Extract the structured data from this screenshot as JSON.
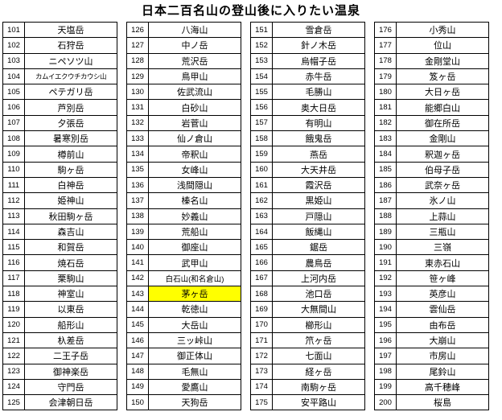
{
  "title": "日本二百名山の登山後に入りたい温泉",
  "highlight_color": "#ffff00",
  "columns": [
    {
      "rows": [
        {
          "num": "101",
          "name": "天塩岳"
        },
        {
          "num": "102",
          "name": "石狩岳"
        },
        {
          "num": "103",
          "name": "ニペソツ山"
        },
        {
          "num": "104",
          "name": "カムイエクウチカウシ山"
        },
        {
          "num": "105",
          "name": "ペテガリ岳"
        },
        {
          "num": "106",
          "name": "芦別岳"
        },
        {
          "num": "107",
          "name": "夕張岳"
        },
        {
          "num": "108",
          "name": "暑寒別岳"
        },
        {
          "num": "109",
          "name": "樽前山"
        },
        {
          "num": "110",
          "name": "駒ヶ岳"
        },
        {
          "num": "111",
          "name": "白神岳"
        },
        {
          "num": "112",
          "name": "姫神山"
        },
        {
          "num": "113",
          "name": "秋田駒ヶ岳"
        },
        {
          "num": "114",
          "name": "森吉山"
        },
        {
          "num": "115",
          "name": "和賀岳"
        },
        {
          "num": "116",
          "name": "焼石岳"
        },
        {
          "num": "117",
          "name": "栗駒山"
        },
        {
          "num": "118",
          "name": "神室山"
        },
        {
          "num": "119",
          "name": "以東岳"
        },
        {
          "num": "120",
          "name": "船形山"
        },
        {
          "num": "121",
          "name": "杁差岳"
        },
        {
          "num": "122",
          "name": "二王子岳"
        },
        {
          "num": "123",
          "name": "御神楽岳"
        },
        {
          "num": "124",
          "name": "守門岳"
        },
        {
          "num": "125",
          "name": "会津朝日岳"
        }
      ]
    },
    {
      "rows": [
        {
          "num": "126",
          "name": "八海山"
        },
        {
          "num": "127",
          "name": "中ノ岳"
        },
        {
          "num": "128",
          "name": "荒沢岳"
        },
        {
          "num": "129",
          "name": "鳥甲山"
        },
        {
          "num": "130",
          "name": "佐武流山"
        },
        {
          "num": "131",
          "name": "白砂山"
        },
        {
          "num": "132",
          "name": "岩菅山"
        },
        {
          "num": "133",
          "name": "仙ノ倉山"
        },
        {
          "num": "134",
          "name": "帝釈山"
        },
        {
          "num": "135",
          "name": "女峰山"
        },
        {
          "num": "136",
          "name": "浅間隠山"
        },
        {
          "num": "137",
          "name": "榛名山"
        },
        {
          "num": "138",
          "name": "妙義山"
        },
        {
          "num": "139",
          "name": "荒船山"
        },
        {
          "num": "140",
          "name": "御座山"
        },
        {
          "num": "141",
          "name": "武甲山"
        },
        {
          "num": "142",
          "name": "白石山(和名倉山)"
        },
        {
          "num": "143",
          "name": "茅ヶ岳",
          "highlight": true
        },
        {
          "num": "144",
          "name": "乾徳山"
        },
        {
          "num": "145",
          "name": "大岳山"
        },
        {
          "num": "146",
          "name": "三ッ峠山"
        },
        {
          "num": "147",
          "name": "御正体山"
        },
        {
          "num": "148",
          "name": "毛無山"
        },
        {
          "num": "149",
          "name": "愛鷹山"
        },
        {
          "num": "150",
          "name": "天狗岳"
        }
      ]
    },
    {
      "rows": [
        {
          "num": "151",
          "name": "雪倉岳"
        },
        {
          "num": "152",
          "name": "針ノ木岳"
        },
        {
          "num": "153",
          "name": "烏帽子岳"
        },
        {
          "num": "154",
          "name": "赤牛岳"
        },
        {
          "num": "155",
          "name": "毛勝山"
        },
        {
          "num": "156",
          "name": "奥大日岳"
        },
        {
          "num": "157",
          "name": "有明山"
        },
        {
          "num": "158",
          "name": "餓鬼岳"
        },
        {
          "num": "159",
          "name": "燕岳"
        },
        {
          "num": "160",
          "name": "大天井岳"
        },
        {
          "num": "161",
          "name": "霞沢岳"
        },
        {
          "num": "162",
          "name": "黒姫山"
        },
        {
          "num": "163",
          "name": "戸隠山"
        },
        {
          "num": "164",
          "name": "飯縄山"
        },
        {
          "num": "165",
          "name": "鋸岳"
        },
        {
          "num": "166",
          "name": "農鳥岳"
        },
        {
          "num": "167",
          "name": "上河内岳"
        },
        {
          "num": "168",
          "name": "池口岳"
        },
        {
          "num": "169",
          "name": "大無間山"
        },
        {
          "num": "170",
          "name": "櫛形山"
        },
        {
          "num": "171",
          "name": "笊ヶ岳"
        },
        {
          "num": "172",
          "name": "七面山"
        },
        {
          "num": "173",
          "name": "経ヶ岳"
        },
        {
          "num": "174",
          "name": "南駒ヶ岳"
        },
        {
          "num": "175",
          "name": "安平路山"
        }
      ]
    },
    {
      "rows": [
        {
          "num": "176",
          "name": "小秀山"
        },
        {
          "num": "177",
          "name": "位山"
        },
        {
          "num": "178",
          "name": "金剛堂山"
        },
        {
          "num": "179",
          "name": "笈ヶ岳"
        },
        {
          "num": "180",
          "name": "大日ヶ岳"
        },
        {
          "num": "181",
          "name": "能郷白山"
        },
        {
          "num": "182",
          "name": "御在所岳"
        },
        {
          "num": "183",
          "name": "金剛山"
        },
        {
          "num": "184",
          "name": "釈迦ヶ岳"
        },
        {
          "num": "185",
          "name": "伯母子岳"
        },
        {
          "num": "186",
          "name": "武奈ヶ岳"
        },
        {
          "num": "187",
          "name": "氷ノ山"
        },
        {
          "num": "188",
          "name": "上蒜山"
        },
        {
          "num": "189",
          "name": "三瓶山"
        },
        {
          "num": "190",
          "name": "三嶺"
        },
        {
          "num": "191",
          "name": "東赤石山"
        },
        {
          "num": "192",
          "name": "笹ヶ峰"
        },
        {
          "num": "193",
          "name": "英彦山"
        },
        {
          "num": "194",
          "name": "雲仙岳"
        },
        {
          "num": "195",
          "name": "由布岳"
        },
        {
          "num": "196",
          "name": "大崩山"
        },
        {
          "num": "197",
          "name": "市房山"
        },
        {
          "num": "198",
          "name": "尾鈴山"
        },
        {
          "num": "199",
          "name": "高千穂峰"
        },
        {
          "num": "200",
          "name": "桜島"
        }
      ]
    }
  ]
}
